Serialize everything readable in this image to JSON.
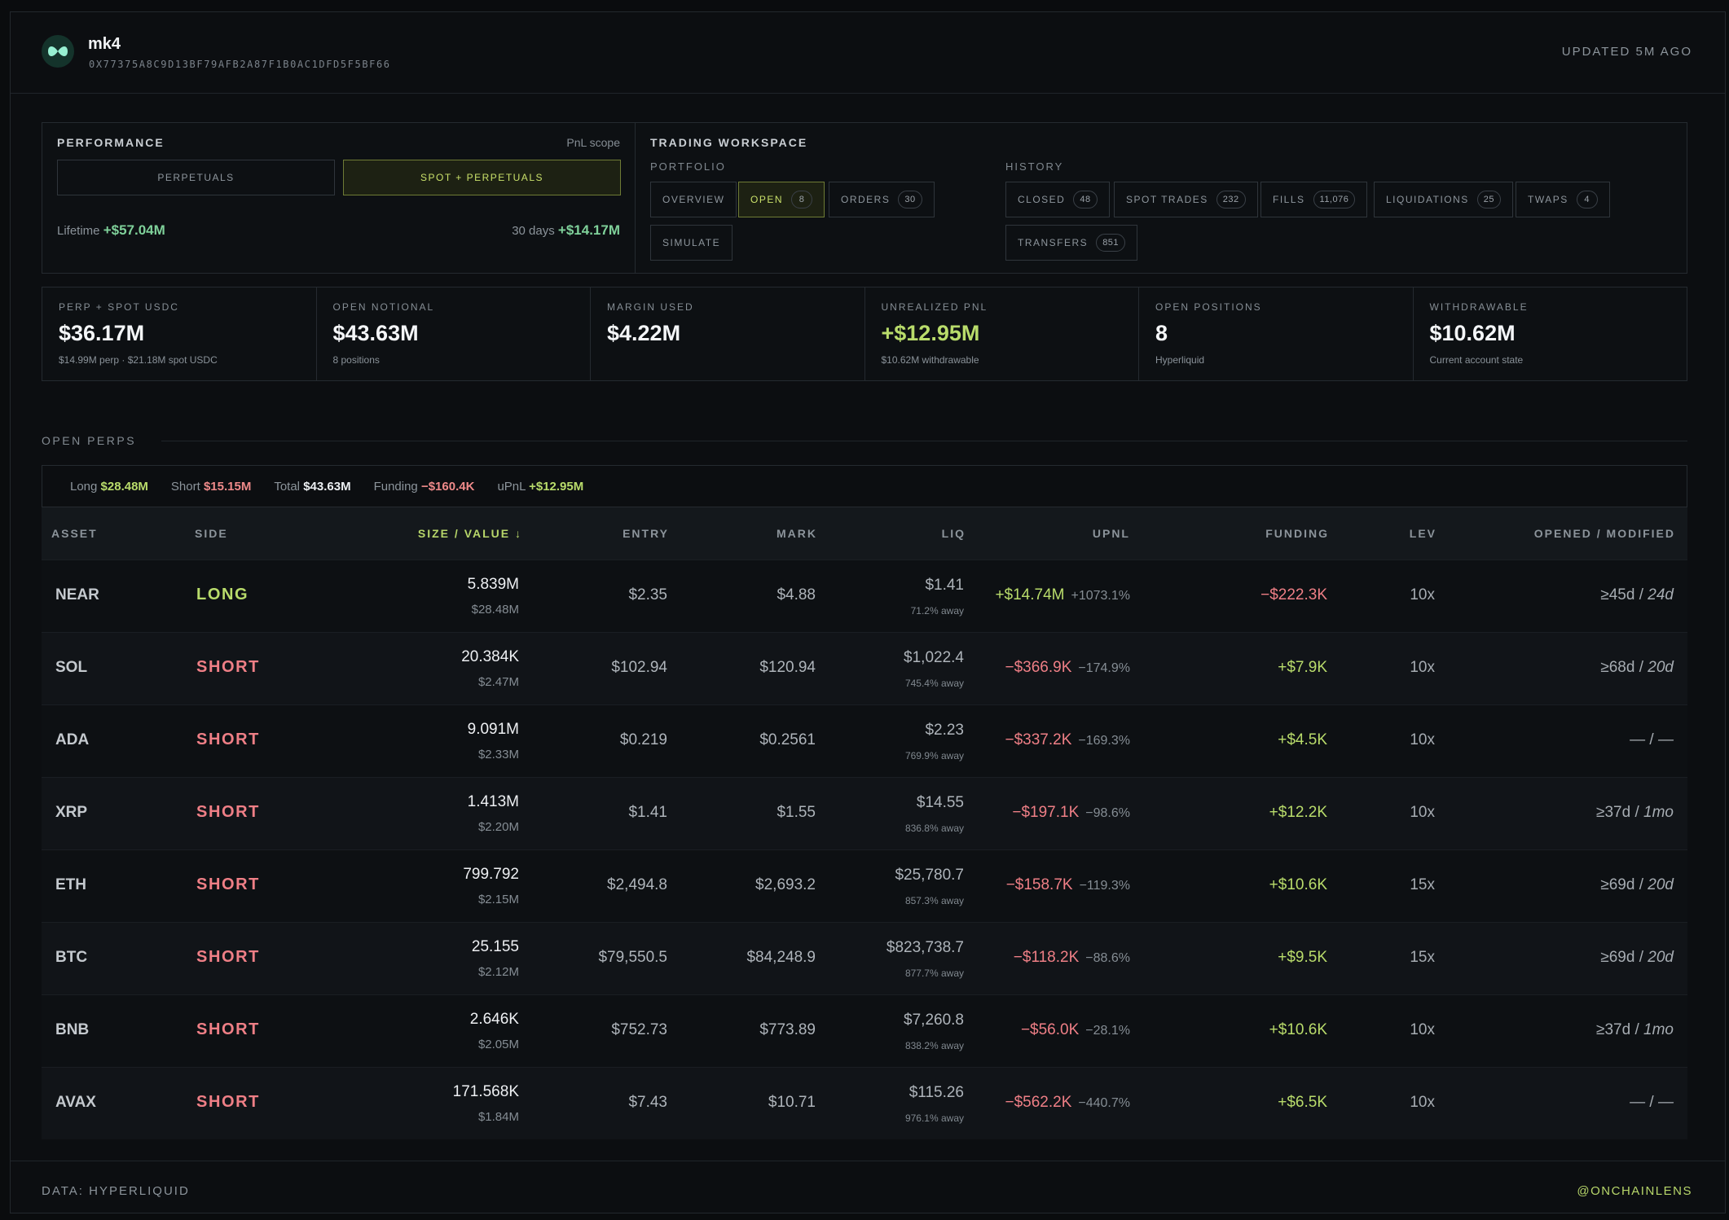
{
  "header": {
    "name": "mk4",
    "address": "0X77375A8C9D13BF79AFB2A87F1B0AC1DFD5F5BF66",
    "updated": "UPDATED 5M AGO"
  },
  "performance": {
    "title": "PERFORMANCE",
    "scope_label": "PnL scope",
    "segments": [
      "PERPETUALS",
      "SPOT + PERPETUALS"
    ],
    "active_segment": "SPOT + PERPETUALS",
    "lifetime_label": "Lifetime",
    "lifetime_value": "+$57.04M",
    "days30_label": "30 days",
    "days30_value": "+$14.17M"
  },
  "workspace": {
    "title": "TRADING WORKSPACE",
    "portfolio_label": "PORTFOLIO",
    "history_label": "HISTORY",
    "portfolio": [
      {
        "label": "OVERVIEW",
        "count": ""
      },
      {
        "label": "OPEN",
        "count": "8"
      },
      {
        "label": "ORDERS",
        "count": "30"
      },
      {
        "label": "SIMULATE",
        "count": ""
      }
    ],
    "history": [
      {
        "label": "CLOSED",
        "count": "48"
      },
      {
        "label": "SPOT TRADES",
        "count": "232"
      },
      {
        "label": "FILLS",
        "count": "11,076"
      },
      {
        "label": "LIQUIDATIONS",
        "count": "25"
      },
      {
        "label": "TWAPS",
        "count": "4"
      },
      {
        "label": "TRANSFERS",
        "count": "851"
      }
    ]
  },
  "stats": [
    {
      "label": "PERP + SPOT USDC",
      "value": "$36.17M",
      "note": "$14.99M perp · $21.18M spot USDC"
    },
    {
      "label": "OPEN NOTIONAL",
      "value": "$43.63M",
      "note": "8 positions"
    },
    {
      "label": "MARGIN USED",
      "value": "$4.22M",
      "note": ""
    },
    {
      "label": "UNREALIZED PNL",
      "value": "+$12.95M",
      "note": "$10.62M withdrawable"
    },
    {
      "label": "OPEN POSITIONS",
      "value": "8",
      "note": "Hyperliquid"
    },
    {
      "label": "WITHDRAWABLE",
      "value": "$10.62M",
      "note": "Current account state"
    }
  ],
  "open_perps": {
    "title": "OPEN PERPS",
    "summary": {
      "long_label": "Long",
      "long_value": "$28.48M",
      "short_label": "Short",
      "short_value": "$15.15M",
      "total_label": "Total",
      "total_value": "$43.63M",
      "funding_label": "Funding",
      "funding_value": "−$160.4K",
      "upnl_label": "uPnL",
      "upnl_value": "+$12.95M"
    },
    "columns": {
      "asset": "ASSET",
      "side": "SIDE",
      "size": "SIZE / VALUE ↓",
      "entry": "ENTRY",
      "mark": "MARK",
      "liq": "LIQ",
      "upnl": "UPNL",
      "funding": "FUNDING",
      "lev": "LEV",
      "opened": "OPENED / MODIFIED"
    },
    "rows": [
      {
        "asset": "NEAR",
        "side": "LONG",
        "size": "5.839M",
        "value": "$28.48M",
        "entry": "$2.35",
        "mark": "$4.88",
        "liq": "$1.41",
        "liq_away": "71.2% away",
        "upnl": "+$14.74M",
        "upnl_pct": "+1073.1%",
        "funding": "−$222.3K",
        "lev": "10x",
        "opened": "≥45d",
        "modified": "24d"
      },
      {
        "asset": "SOL",
        "side": "SHORT",
        "size": "20.384K",
        "value": "$2.47M",
        "entry": "$102.94",
        "mark": "$120.94",
        "liq": "$1,022.4",
        "liq_away": "745.4% away",
        "upnl": "−$366.9K",
        "upnl_pct": "−174.9%",
        "funding": "+$7.9K",
        "lev": "10x",
        "opened": "≥68d",
        "modified": "20d"
      },
      {
        "asset": "ADA",
        "side": "SHORT",
        "size": "9.091M",
        "value": "$2.33M",
        "entry": "$0.219",
        "mark": "$0.2561",
        "liq": "$2.23",
        "liq_away": "769.9% away",
        "upnl": "−$337.2K",
        "upnl_pct": "−169.3%",
        "funding": "+$4.5K",
        "lev": "10x",
        "opened": "—",
        "modified": "—"
      },
      {
        "asset": "XRP",
        "side": "SHORT",
        "size": "1.413M",
        "value": "$2.20M",
        "entry": "$1.41",
        "mark": "$1.55",
        "liq": "$14.55",
        "liq_away": "836.8% away",
        "upnl": "−$197.1K",
        "upnl_pct": "−98.6%",
        "funding": "+$12.2K",
        "lev": "10x",
        "opened": "≥37d",
        "modified": "1mo"
      },
      {
        "asset": "ETH",
        "side": "SHORT",
        "size": "799.792",
        "value": "$2.15M",
        "entry": "$2,494.8",
        "mark": "$2,693.2",
        "liq": "$25,780.7",
        "liq_away": "857.3% away",
        "upnl": "−$158.7K",
        "upnl_pct": "−119.3%",
        "funding": "+$10.6K",
        "lev": "15x",
        "opened": "≥69d",
        "modified": "20d"
      },
      {
        "asset": "BTC",
        "side": "SHORT",
        "size": "25.155",
        "value": "$2.12M",
        "entry": "$79,550.5",
        "mark": "$84,248.9",
        "liq": "$823,738.7",
        "liq_away": "877.7% away",
        "upnl": "−$118.2K",
        "upnl_pct": "−88.6%",
        "funding": "+$9.5K",
        "lev": "15x",
        "opened": "≥69d",
        "modified": "20d"
      },
      {
        "asset": "BNB",
        "side": "SHORT",
        "size": "2.646K",
        "value": "$2.05M",
        "entry": "$752.73",
        "mark": "$773.89",
        "liq": "$7,260.8",
        "liq_away": "838.2% away",
        "upnl": "−$56.0K",
        "upnl_pct": "−28.1%",
        "funding": "+$10.6K",
        "lev": "10x",
        "opened": "≥37d",
        "modified": "1mo"
      },
      {
        "asset": "AVAX",
        "side": "SHORT",
        "size": "171.568K",
        "value": "$1.84M",
        "entry": "$7.43",
        "mark": "$10.71",
        "liq": "$115.26",
        "liq_away": "976.1% away",
        "upnl": "−$562.2K",
        "upnl_pct": "−440.7%",
        "funding": "+$6.5K",
        "lev": "10x",
        "opened": "—",
        "modified": "—"
      }
    ]
  },
  "footer": {
    "source": "DATA: HYPERLIQUID",
    "handle": "@ONCHAINLENS"
  },
  "colors": {
    "accent": "#b9dc6b",
    "negative": "#ef7f86",
    "positive": "#7fd19a",
    "background": "#0c0e11"
  }
}
